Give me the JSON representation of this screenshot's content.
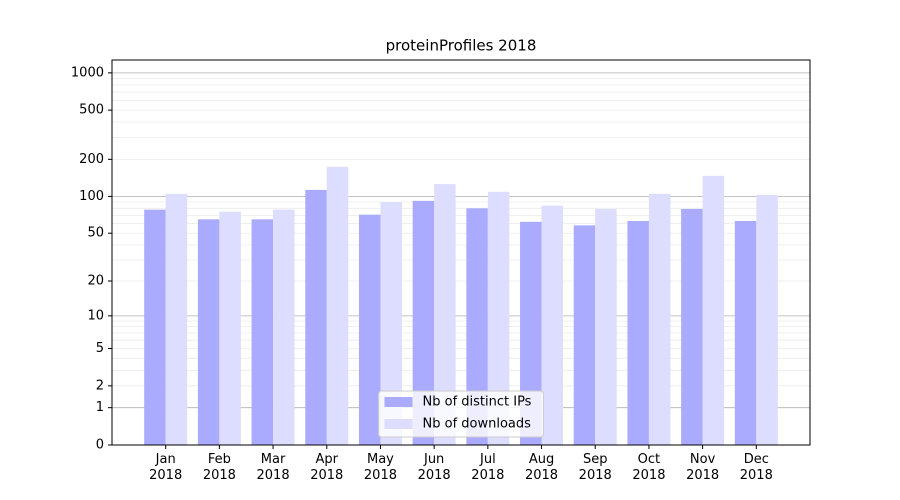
{
  "chart_data": {
    "type": "bar",
    "title": "proteinProfiles 2018",
    "categories": [
      "Jan 2018",
      "Feb 2018",
      "Mar 2018",
      "Apr 2018",
      "May 2018",
      "Jun 2018",
      "Jul 2018",
      "Aug 2018",
      "Sep 2018",
      "Oct 2018",
      "Nov 2018",
      "Dec 2018"
    ],
    "series": [
      {
        "name": "Nb of distinct IPs",
        "color": "#aaaaff",
        "values": [
          78,
          65,
          65,
          113,
          71,
          92,
          80,
          62,
          58,
          63,
          79,
          63
        ]
      },
      {
        "name": "Nb of downloads",
        "color": "#ddddff",
        "values": [
          105,
          75,
          78,
          174,
          90,
          126,
          109,
          84,
          79,
          105,
          147,
          103
        ]
      }
    ],
    "yscale": "log1p",
    "ylim": [
      0,
      1270
    ],
    "yticks": [
      0,
      1,
      2,
      5,
      10,
      20,
      50,
      100,
      200,
      500,
      1000
    ],
    "y_major_grid": [
      1,
      10,
      100,
      1000
    ],
    "y_minor_grid": [
      2,
      3,
      4,
      5,
      6,
      7,
      8,
      9,
      20,
      30,
      40,
      50,
      60,
      70,
      80,
      90,
      200,
      300,
      400,
      500,
      600,
      700,
      800,
      900
    ],
    "grid": true,
    "legend": "lower center"
  }
}
